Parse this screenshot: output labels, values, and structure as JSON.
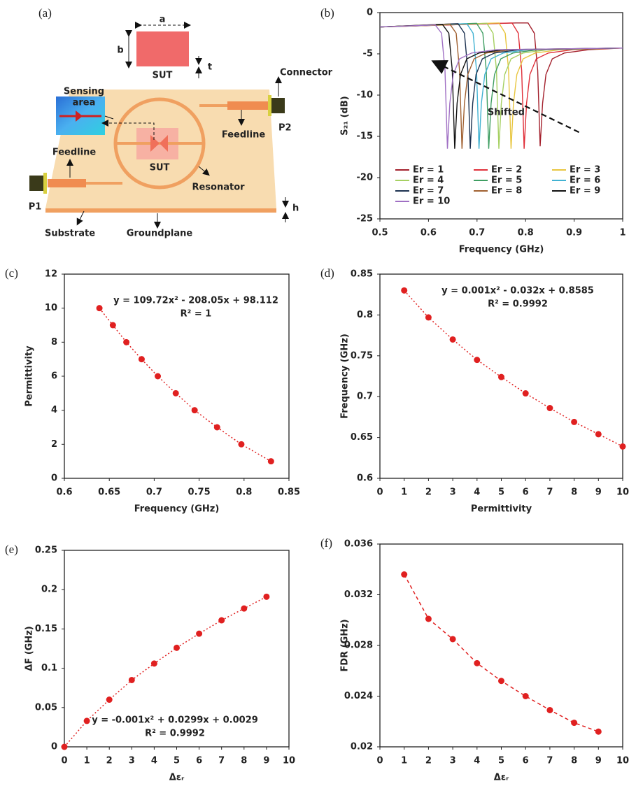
{
  "diagram": {
    "panel_label": "(a)",
    "labels": {
      "a": "a",
      "b": "b",
      "t": "t",
      "sut_top": "SUT",
      "sensing_area": [
        "Sensing",
        "area"
      ],
      "connector": "Connector",
      "feedline_right": "Feedline",
      "p2": "P2",
      "feedline_left": "Feedline",
      "sut_mid": "SUT",
      "resonator": "Resonator",
      "p1": "P1",
      "h": "h",
      "substrate": "Substrate",
      "groundplane": "Groundplane"
    }
  },
  "chart_data": [
    {
      "type": "line",
      "panel_label": "(b)",
      "x_label": "Frequency (GHz)",
      "y_label": "S₂₁ (dB)",
      "annotation": "Shifted",
      "xlim": [
        0.5,
        1
      ],
      "xticks": [
        0.5,
        0.6,
        0.7,
        0.8,
        0.9,
        1
      ],
      "ylim": [
        -25,
        0
      ],
      "yticks": [
        0,
        -5,
        -10,
        -15,
        -20,
        -25
      ],
      "series": [
        {
          "name": "Er = 1",
          "color": "#a3202c",
          "x": [
            0.5,
            0.78,
            0.805,
            0.818,
            0.825,
            0.83,
            0.835,
            0.842,
            0.855,
            0.88,
            0.93,
            1
          ],
          "values": [
            -1.75,
            -1.25,
            -1.25,
            -2.5,
            -7,
            -16.2,
            -11,
            -7.5,
            -5.6,
            -4.9,
            -4.5,
            -4.3
          ]
        },
        {
          "name": "Er = 2",
          "color": "#e0303a",
          "x": [
            0.5,
            0.747,
            0.772,
            0.785,
            0.792,
            0.797,
            0.802,
            0.809,
            0.822,
            0.847,
            0.897,
            1
          ],
          "values": [
            -1.75,
            -1.3,
            -1.25,
            -2.5,
            -7,
            -16.5,
            -11,
            -7.5,
            -5.6,
            -4.9,
            -4.5,
            -4.3
          ]
        },
        {
          "name": "Er = 3",
          "color": "#e8c640",
          "x": [
            0.5,
            0.72,
            0.745,
            0.758,
            0.765,
            0.77,
            0.775,
            0.782,
            0.795,
            0.82,
            0.87,
            1
          ],
          "values": [
            -1.75,
            -1.3,
            -1.25,
            -2.5,
            -7,
            -16.5,
            -11,
            -7.5,
            -5.6,
            -4.9,
            -4.5,
            -4.3
          ]
        },
        {
          "name": "Er = 4",
          "color": "#a6d062",
          "x": [
            0.5,
            0.695,
            0.72,
            0.733,
            0.74,
            0.745,
            0.75,
            0.757,
            0.77,
            0.795,
            0.845,
            1
          ],
          "values": [
            -1.75,
            -1.35,
            -1.3,
            -2.5,
            -7,
            -16.5,
            -11,
            -7.5,
            -5.6,
            -4.9,
            -4.5,
            -4.3
          ]
        },
        {
          "name": "Er = 5",
          "color": "#3f9e62",
          "x": [
            0.5,
            0.674,
            0.699,
            0.712,
            0.719,
            0.724,
            0.729,
            0.736,
            0.749,
            0.774,
            0.824,
            1
          ],
          "values": [
            -1.75,
            -1.35,
            -1.3,
            -2.5,
            -7,
            -16.5,
            -11,
            -7.5,
            -5.6,
            -4.9,
            -4.5,
            -4.3
          ]
        },
        {
          "name": "Er = 6",
          "color": "#42b2d2",
          "x": [
            0.5,
            0.654,
            0.679,
            0.692,
            0.699,
            0.704,
            0.709,
            0.716,
            0.729,
            0.754,
            0.804,
            1
          ],
          "values": [
            -1.75,
            -1.4,
            -1.35,
            -2.5,
            -7,
            -16.5,
            -11,
            -7.5,
            -5.6,
            -4.9,
            -4.5,
            -4.3
          ]
        },
        {
          "name": "Er = 7",
          "color": "#1c3150",
          "x": [
            0.5,
            0.636,
            0.661,
            0.674,
            0.681,
            0.686,
            0.691,
            0.698,
            0.711,
            0.736,
            0.786,
            1
          ],
          "values": [
            -1.75,
            -1.4,
            -1.35,
            -2.5,
            -7,
            -16.5,
            -11,
            -7.5,
            -5.6,
            -4.9,
            -4.5,
            -4.3
          ]
        },
        {
          "name": "Er = 8",
          "color": "#a06030",
          "x": [
            0.5,
            0.619,
            0.644,
            0.657,
            0.664,
            0.669,
            0.674,
            0.681,
            0.694,
            0.719,
            0.769,
            1
          ],
          "values": [
            -1.75,
            -1.45,
            -1.4,
            -2.5,
            -7,
            -16.5,
            -11,
            -7.5,
            -5.6,
            -4.9,
            -4.5,
            -4.3
          ]
        },
        {
          "name": "Er = 9",
          "color": "#111111",
          "x": [
            0.5,
            0.604,
            0.629,
            0.642,
            0.649,
            0.654,
            0.659,
            0.666,
            0.679,
            0.704,
            0.754,
            1
          ],
          "values": [
            -1.75,
            -1.5,
            -1.45,
            -2.5,
            -7,
            -16.5,
            -11,
            -7.5,
            -5.6,
            -4.9,
            -4.5,
            -4.3
          ]
        },
        {
          "name": "Er = 10",
          "color": "#a070c4",
          "x": [
            0.5,
            0.589,
            0.614,
            0.627,
            0.634,
            0.639,
            0.644,
            0.651,
            0.664,
            0.689,
            0.739,
            1
          ],
          "values": [
            -1.75,
            -1.55,
            -1.5,
            -2.5,
            -7,
            -16.5,
            -11,
            -7.5,
            -5.6,
            -4.9,
            -4.5,
            -4.3
          ]
        }
      ]
    },
    {
      "type": "scatter",
      "panel_label": "(c)",
      "x_label": "Frequency (GHz)",
      "y_label": "Permittivity",
      "color": "#e02020",
      "line_style": "dotted",
      "equation": [
        "y = 109.72x² - 208.05x + 98.112",
        "R² = 1"
      ],
      "xlim": [
        0.6,
        0.85
      ],
      "xticks": [
        0.6,
        0.65,
        0.7,
        0.75,
        0.8,
        0.85
      ],
      "ylim": [
        0,
        12
      ],
      "yticks": [
        0,
        2,
        4,
        6,
        8,
        10,
        12
      ],
      "x": [
        0.639,
        0.654,
        0.669,
        0.686,
        0.704,
        0.724,
        0.745,
        0.77,
        0.797,
        0.83
      ],
      "values": [
        10,
        9,
        8,
        7,
        6,
        5,
        4,
        3,
        2,
        1
      ]
    },
    {
      "type": "scatter",
      "panel_label": "(d)",
      "x_label": "Permittivity",
      "y_label": "Frequency (GHz)",
      "color": "#e02020",
      "line_style": "dotted",
      "equation": [
        "y = 0.001x² - 0.032x + 0.8585",
        "R² = 0.9992"
      ],
      "xlim": [
        0,
        10
      ],
      "xticks": [
        0,
        1,
        2,
        3,
        4,
        5,
        6,
        7,
        8,
        9,
        10
      ],
      "ylim": [
        0.6,
        0.85
      ],
      "yticks": [
        0.6,
        0.65,
        0.7,
        0.75,
        0.8,
        0.85
      ],
      "x": [
        1,
        2,
        3,
        4,
        5,
        6,
        7,
        8,
        9,
        10
      ],
      "values": [
        0.83,
        0.797,
        0.77,
        0.745,
        0.724,
        0.704,
        0.686,
        0.669,
        0.654,
        0.639
      ]
    },
    {
      "type": "scatter",
      "panel_label": "(e)",
      "x_label": "Δεᵣ",
      "y_label": "ΔF (GHz)",
      "color": "#e02020",
      "line_style": "dotted",
      "equation": [
        "y = -0.001x² + 0.0299x + 0.0029",
        "R² = 0.9992"
      ],
      "xlim": [
        0,
        10
      ],
      "xticks": [
        0,
        1,
        2,
        3,
        4,
        5,
        6,
        7,
        8,
        9,
        10
      ],
      "ylim": [
        0,
        0.25
      ],
      "yticks": [
        0,
        0.05,
        0.1,
        0.15,
        0.2,
        0.25
      ],
      "x": [
        0,
        1,
        2,
        3,
        4,
        5,
        6,
        7,
        8,
        9
      ],
      "values": [
        0,
        0.033,
        0.06,
        0.085,
        0.106,
        0.126,
        0.144,
        0.161,
        0.176,
        0.191
      ]
    },
    {
      "type": "scatter",
      "panel_label": "(f)",
      "x_label": "Δεᵣ",
      "y_label": "FDR (GHz)",
      "color": "#e02020",
      "line_style": "dashed",
      "xlim": [
        0,
        10
      ],
      "xticks": [
        0,
        1,
        2,
        3,
        4,
        5,
        6,
        7,
        8,
        9,
        10
      ],
      "ylim": [
        0.02,
        0.036
      ],
      "yticks": [
        0.02,
        0.024,
        0.028,
        0.032,
        0.036
      ],
      "x": [
        1,
        2,
        3,
        4,
        5,
        6,
        7,
        8,
        9
      ],
      "values": [
        0.0336,
        0.0301,
        0.0285,
        0.0266,
        0.0252,
        0.024,
        0.0229,
        0.0219,
        0.0212
      ]
    }
  ]
}
